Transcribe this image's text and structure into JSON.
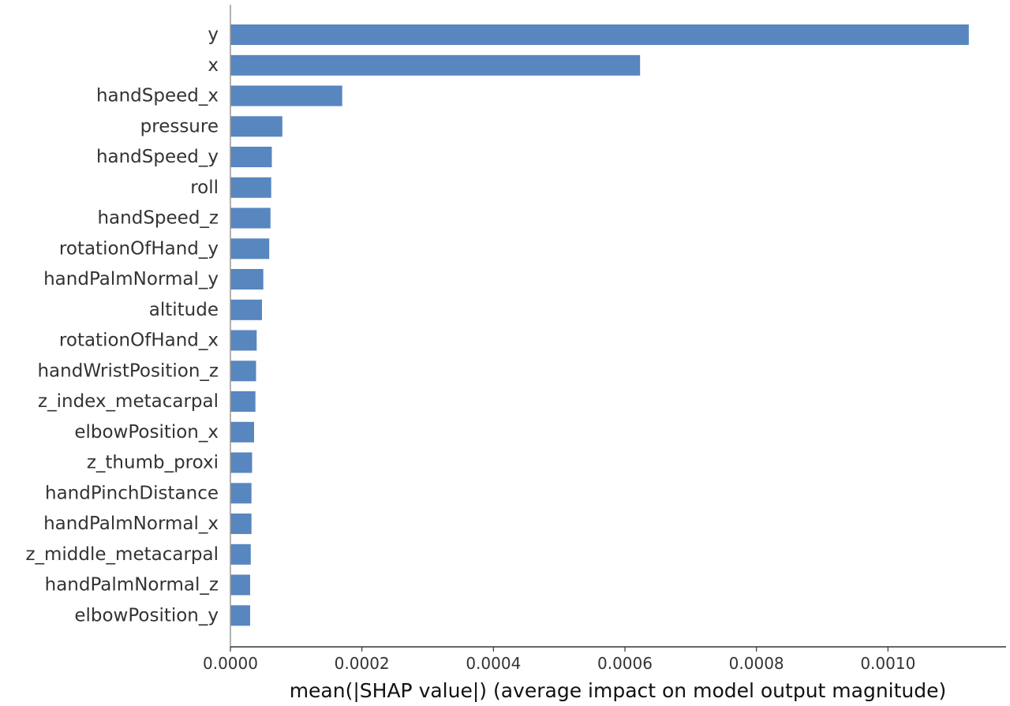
{
  "chart_data": {
    "type": "bar",
    "orientation": "horizontal",
    "categories": [
      "y",
      "x",
      "handSpeed_x",
      "pressure",
      "handSpeed_y",
      "roll",
      "handSpeed_z",
      "rotationOfHand_y",
      "handPalmNormal_y",
      "altitude",
      "rotationOfHand_x",
      "handWristPosition_z",
      "z_index_metacarpal",
      "elbowPosition_x",
      "z_thumb_proxi",
      "handPinchDistance",
      "handPalmNormal_x",
      "z_middle_metacarpal",
      "handPalmNormal_z",
      "elbowPosition_y"
    ],
    "values": [
      0.001123,
      0.000623,
      0.00017,
      7.9e-05,
      6.3e-05,
      6.2e-05,
      6.1e-05,
      5.9e-05,
      5e-05,
      4.8e-05,
      4e-05,
      3.9e-05,
      3.8e-05,
      3.6e-05,
      3.3e-05,
      3.2e-05,
      3.2e-05,
      3.1e-05,
      3e-05,
      3e-05
    ],
    "xlabel": "mean(|SHAP value|) (average impact on model output magnitude)",
    "xticks": [
      "0.0000",
      "0.0002",
      "0.0004",
      "0.0006",
      "0.0008",
      "0.0010"
    ],
    "xtick_values": [
      0,
      0.0002,
      0.0004,
      0.0006,
      0.0008,
      0.001
    ],
    "xlim": [
      0,
      0.00118
    ],
    "bar_color": "#5886bf",
    "grid": false,
    "legend": false
  }
}
